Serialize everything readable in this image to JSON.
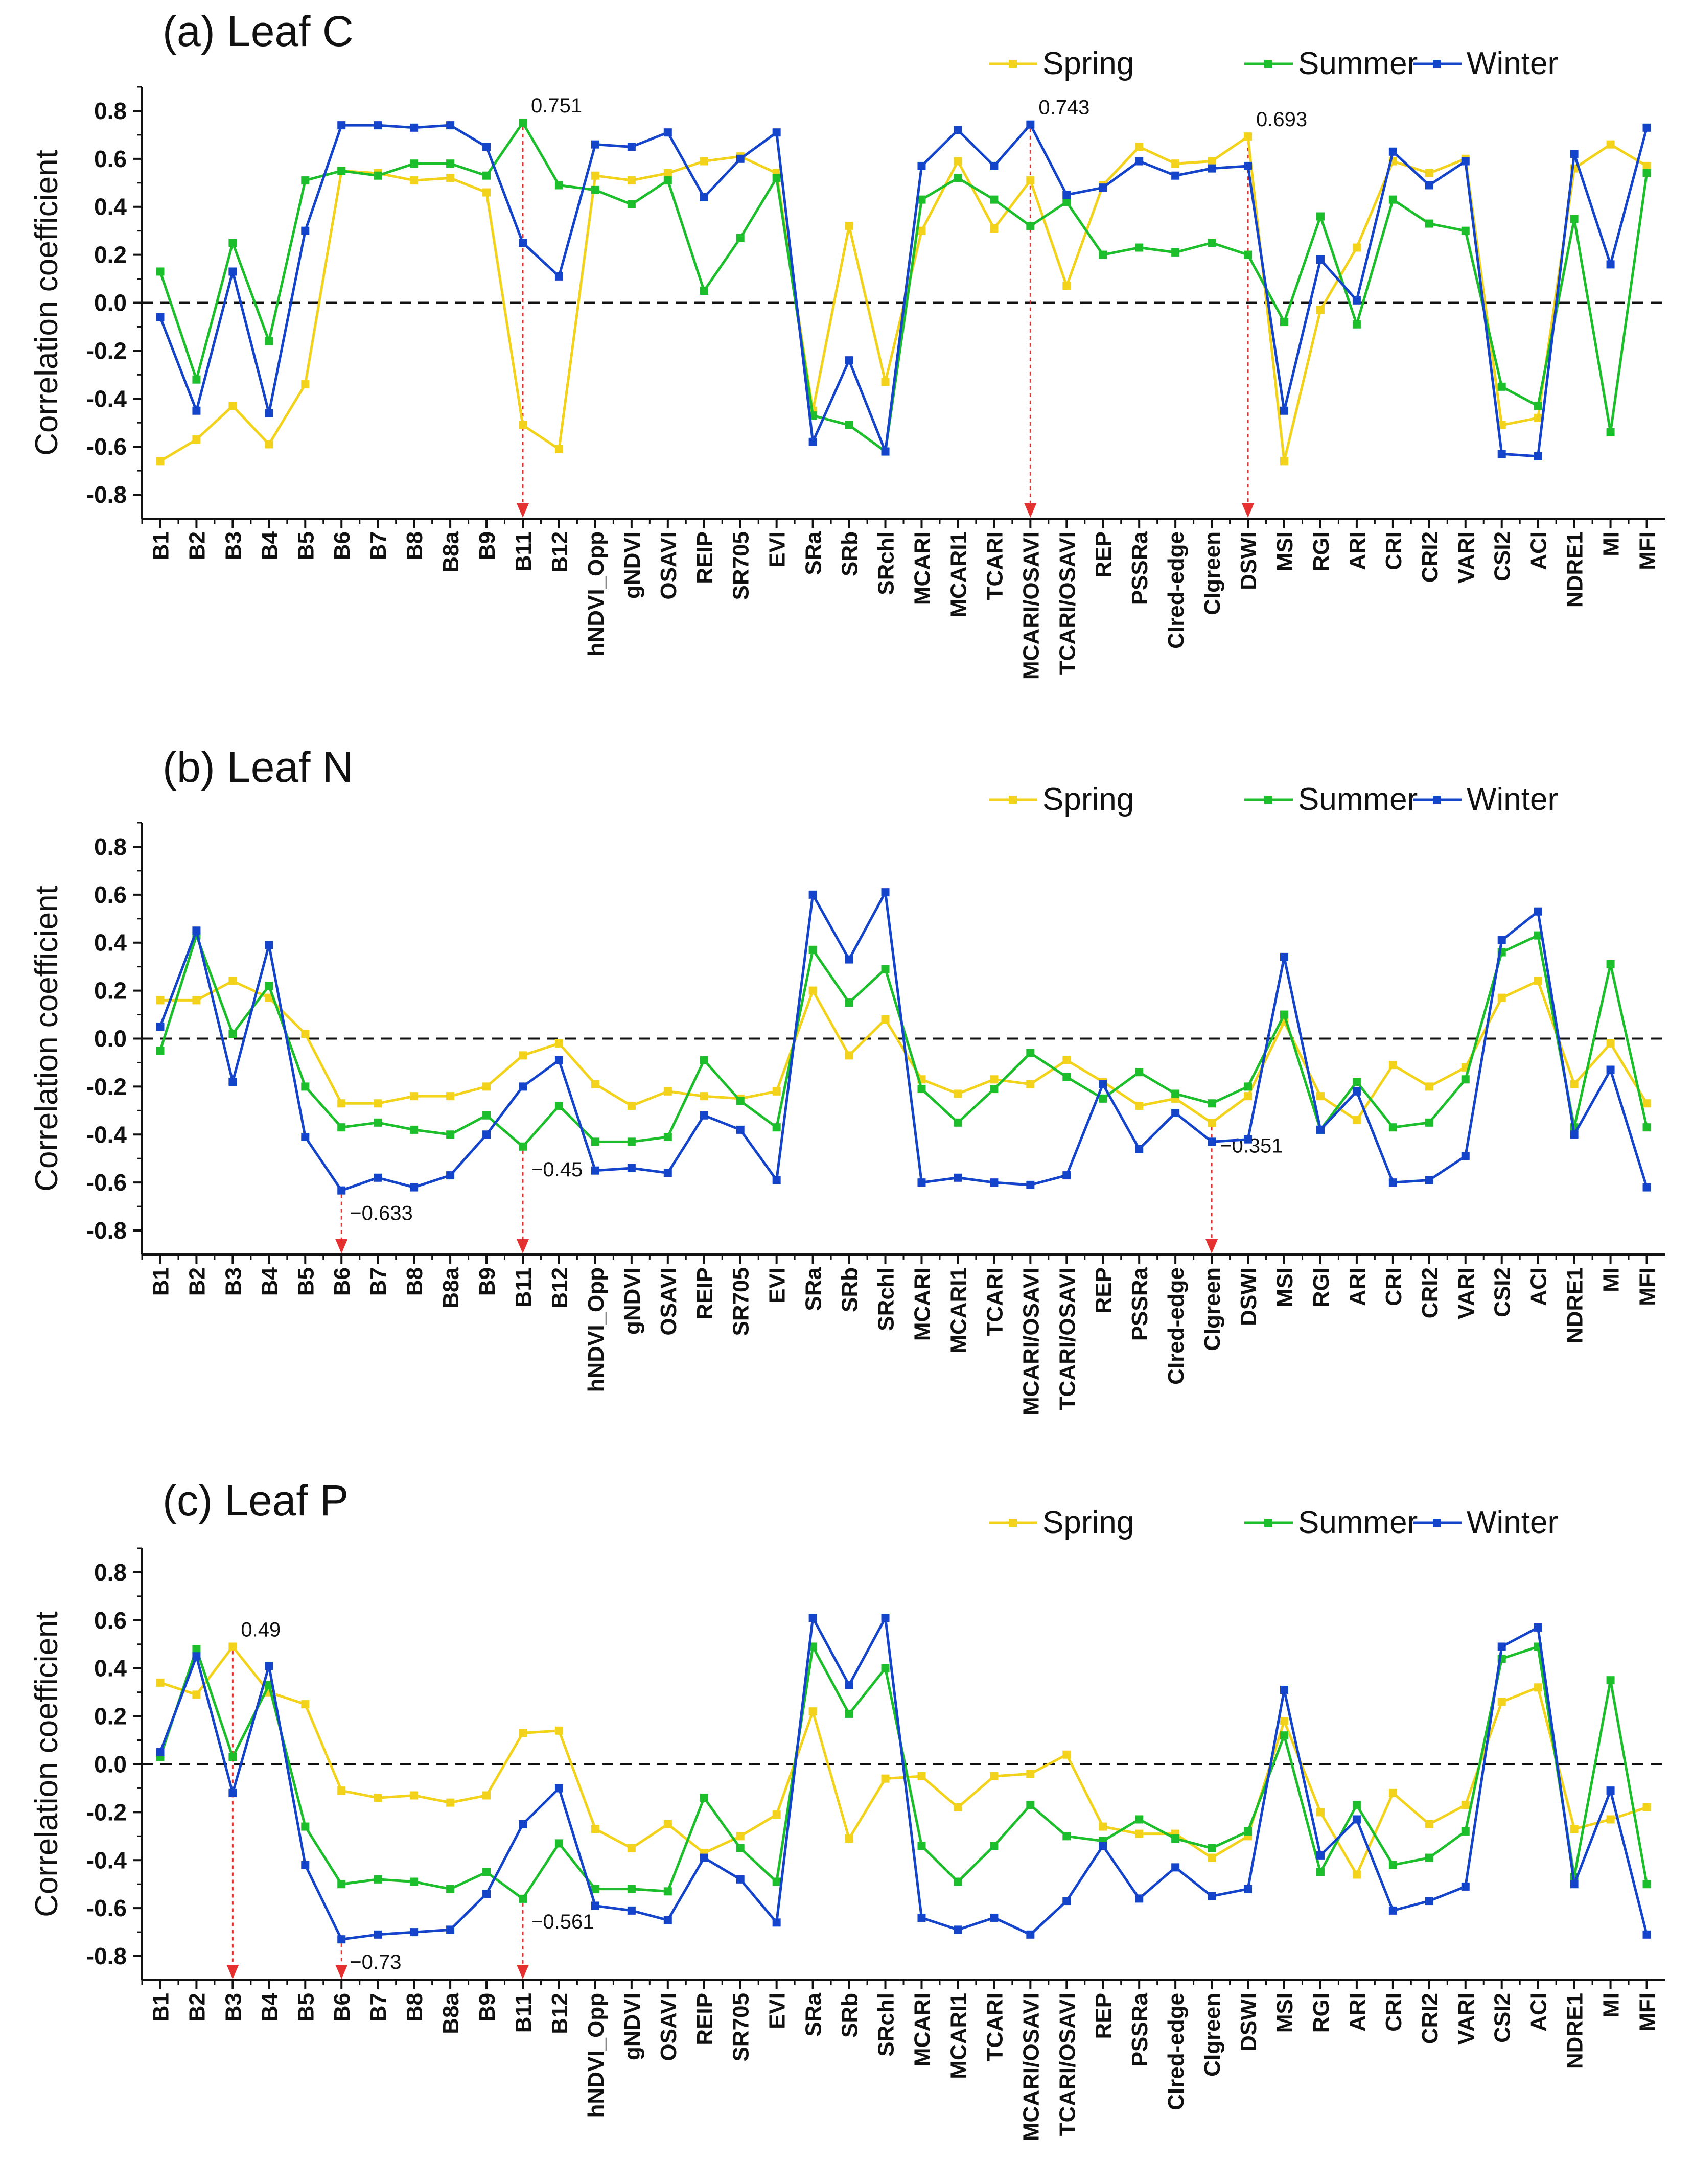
{
  "chart_data": [
    {
      "type": "line",
      "title": "(a) Leaf C",
      "ylabel": "Correlation coefficient",
      "xlabel": "",
      "ylim": [
        -0.9,
        0.9
      ],
      "yticks": [
        "-0.8",
        "-0.6",
        "-0.4",
        "-0.2",
        "0.0",
        "0.2",
        "0.4",
        "0.6",
        "0.8"
      ],
      "reference_line": 0.0,
      "categories": [
        "B1",
        "B2",
        "B3",
        "B4",
        "B5",
        "B6",
        "B7",
        "B8",
        "B8a",
        "B9",
        "B11",
        "B12",
        "hNDVI_Opp",
        "gNDVI",
        "OSAVI",
        "REIP",
        "SR705",
        "EVI",
        "SRa",
        "SRb",
        "SRchl",
        "MCARI",
        "MCARI1",
        "TCARI",
        "MCARI/OSAVI",
        "TCARI/OSAVI",
        "REP",
        "PSSRa",
        "CIred-edge",
        "CIgreen",
        "DSWI",
        "MSI",
        "RGI",
        "ARI",
        "CRI",
        "CRI2",
        "VARI",
        "CSI2",
        "ACI",
        "NDRE1",
        "MI",
        "MFI"
      ],
      "legend_position": "top-right",
      "series": [
        {
          "name": "Spring",
          "color": "#F2D21A",
          "values": [
            -0.66,
            -0.57,
            -0.43,
            -0.59,
            -0.34,
            0.55,
            0.54,
            0.51,
            0.52,
            0.46,
            -0.51,
            -0.61,
            0.53,
            0.51,
            0.54,
            0.59,
            0.61,
            0.54,
            -0.45,
            0.32,
            -0.33,
            0.3,
            0.59,
            0.31,
            0.51,
            0.07,
            0.49,
            0.65,
            0.58,
            0.59,
            0.693,
            -0.66,
            -0.03,
            0.23,
            0.59,
            0.54,
            0.6,
            -0.51,
            -0.48,
            0.56,
            0.66,
            0.57
          ]
        },
        {
          "name": "Summer",
          "color": "#1DBE2B",
          "values": [
            0.13,
            -0.32,
            0.25,
            -0.16,
            0.51,
            0.55,
            0.53,
            0.58,
            0.58,
            0.53,
            0.751,
            0.49,
            0.47,
            0.41,
            0.51,
            0.05,
            0.27,
            0.52,
            -0.47,
            -0.51,
            -0.62,
            0.43,
            0.52,
            0.43,
            0.32,
            0.42,
            0.2,
            0.23,
            0.21,
            0.25,
            0.2,
            -0.08,
            0.36,
            -0.09,
            0.43,
            0.33,
            0.3,
            -0.35,
            -0.43,
            0.35,
            -0.54,
            0.54
          ]
        },
        {
          "name": "Winter",
          "color": "#1444C9",
          "values": [
            -0.06,
            -0.45,
            0.13,
            -0.46,
            0.3,
            0.74,
            0.74,
            0.73,
            0.74,
            0.65,
            0.25,
            0.11,
            0.66,
            0.65,
            0.71,
            0.44,
            0.6,
            0.71,
            -0.58,
            -0.24,
            -0.62,
            0.57,
            0.72,
            0.57,
            0.743,
            0.45,
            0.48,
            0.59,
            0.53,
            0.56,
            0.57,
            -0.45,
            0.18,
            0.01,
            0.63,
            0.49,
            0.59,
            -0.63,
            -0.64,
            0.62,
            0.16,
            0.73
          ]
        }
      ],
      "annotations": [
        {
          "category": "B11",
          "value": 0.751,
          "text": "0.751"
        },
        {
          "category": "MCARI/OSAVI",
          "value": 0.743,
          "text": "0.743"
        },
        {
          "category": "DSWI",
          "value": 0.693,
          "text": "0.693"
        }
      ]
    },
    {
      "type": "line",
      "title": "(b) Leaf N",
      "ylabel": "Correlation coefficient",
      "xlabel": "",
      "ylim": [
        -0.9,
        0.9
      ],
      "yticks": [
        "-0.8",
        "-0.6",
        "-0.4",
        "-0.2",
        "0.0",
        "0.2",
        "0.4",
        "0.6",
        "0.8"
      ],
      "reference_line": 0.0,
      "categories": [
        "B1",
        "B2",
        "B3",
        "B4",
        "B5",
        "B6",
        "B7",
        "B8",
        "B8a",
        "B9",
        "B11",
        "B12",
        "hNDVI_Opp",
        "gNDVI",
        "OSAVI",
        "REIP",
        "SR705",
        "EVI",
        "SRa",
        "SRb",
        "SRchl",
        "MCARI",
        "MCARI1",
        "TCARI",
        "MCARI/OSAVI",
        "TCARI/OSAVI",
        "REP",
        "PSSRa",
        "CIred-edge",
        "CIgreen",
        "DSWI",
        "MSI",
        "RGI",
        "ARI",
        "CRI",
        "CRI2",
        "VARI",
        "CSI2",
        "ACI",
        "NDRE1",
        "MI",
        "MFI"
      ],
      "legend_position": "top-right",
      "series": [
        {
          "name": "Spring",
          "color": "#F2D21A",
          "values": [
            0.16,
            0.16,
            0.24,
            0.17,
            0.02,
            -0.27,
            -0.27,
            -0.24,
            -0.24,
            -0.2,
            -0.07,
            -0.02,
            -0.19,
            -0.28,
            -0.22,
            -0.24,
            -0.25,
            -0.22,
            0.2,
            -0.07,
            0.08,
            -0.17,
            -0.23,
            -0.17,
            -0.19,
            -0.09,
            -0.18,
            -0.28,
            -0.25,
            -0.351,
            -0.24,
            0.07,
            -0.24,
            -0.34,
            -0.11,
            -0.2,
            -0.12,
            0.17,
            0.24,
            -0.19,
            -0.02,
            -0.27
          ]
        },
        {
          "name": "Summer",
          "color": "#1DBE2B",
          "values": [
            -0.05,
            0.43,
            0.02,
            0.22,
            -0.2,
            -0.37,
            -0.35,
            -0.38,
            -0.4,
            -0.32,
            -0.45,
            -0.28,
            -0.43,
            -0.43,
            -0.41,
            -0.09,
            -0.26,
            -0.37,
            0.37,
            0.15,
            0.29,
            -0.21,
            -0.35,
            -0.21,
            -0.06,
            -0.16,
            -0.25,
            -0.14,
            -0.23,
            -0.27,
            -0.2,
            0.1,
            -0.38,
            -0.18,
            -0.37,
            -0.35,
            -0.17,
            0.36,
            0.43,
            -0.37,
            0.31,
            -0.37
          ]
        },
        {
          "name": "Winter",
          "color": "#1444C9",
          "values": [
            0.05,
            0.45,
            -0.18,
            0.39,
            -0.41,
            -0.633,
            -0.58,
            -0.62,
            -0.57,
            -0.4,
            -0.2,
            -0.09,
            -0.55,
            -0.54,
            -0.56,
            -0.32,
            -0.38,
            -0.59,
            0.6,
            0.33,
            0.61,
            -0.6,
            -0.58,
            -0.6,
            -0.61,
            -0.57,
            -0.19,
            -0.46,
            -0.31,
            -0.43,
            -0.42,
            0.34,
            -0.38,
            -0.22,
            -0.6,
            -0.59,
            -0.49,
            0.41,
            0.53,
            -0.4,
            -0.13,
            -0.62
          ]
        }
      ],
      "annotations": [
        {
          "category": "B6",
          "value": -0.633,
          "text": "−0.633"
        },
        {
          "category": "B11",
          "value": -0.45,
          "text": "−0.45"
        },
        {
          "category": "CIgreen",
          "value": -0.351,
          "text": "−0.351"
        }
      ]
    },
    {
      "type": "line",
      "title": "(c) Leaf P",
      "ylabel": "Correlation coefficient",
      "xlabel": "",
      "ylim": [
        -0.9,
        0.9
      ],
      "yticks": [
        "-0.8",
        "-0.6",
        "-0.4",
        "-0.2",
        "0.0",
        "0.2",
        "0.4",
        "0.6",
        "0.8"
      ],
      "reference_line": 0.0,
      "categories": [
        "B1",
        "B2",
        "B3",
        "B4",
        "B5",
        "B6",
        "B7",
        "B8",
        "B8a",
        "B9",
        "B11",
        "B12",
        "hNDVI_Opp",
        "gNDVI",
        "OSAVI",
        "REIP",
        "SR705",
        "EVI",
        "SRa",
        "SRb",
        "SRchl",
        "MCARI",
        "MCARI1",
        "TCARI",
        "MCARI/OSAVI",
        "TCARI/OSAVI",
        "REP",
        "PSSRa",
        "CIred-edge",
        "CIgreen",
        "DSWI",
        "MSI",
        "RGI",
        "ARI",
        "CRI",
        "CRI2",
        "VARI",
        "CSI2",
        "ACI",
        "NDRE1",
        "MI",
        "MFI"
      ],
      "legend_position": "top-right",
      "series": [
        {
          "name": "Spring",
          "color": "#F2D21A",
          "values": [
            0.34,
            0.29,
            0.49,
            0.3,
            0.25,
            -0.11,
            -0.14,
            -0.13,
            -0.16,
            -0.13,
            0.13,
            0.14,
            -0.27,
            -0.35,
            -0.25,
            -0.37,
            -0.3,
            -0.21,
            0.22,
            -0.31,
            -0.06,
            -0.05,
            -0.18,
            -0.05,
            -0.04,
            0.04,
            -0.26,
            -0.29,
            -0.29,
            -0.39,
            -0.3,
            0.18,
            -0.2,
            -0.46,
            -0.12,
            -0.25,
            -0.17,
            0.26,
            0.32,
            -0.27,
            -0.23,
            -0.18
          ]
        },
        {
          "name": "Summer",
          "color": "#1DBE2B",
          "values": [
            0.03,
            0.48,
            0.03,
            0.33,
            -0.26,
            -0.5,
            -0.48,
            -0.49,
            -0.52,
            -0.45,
            -0.561,
            -0.33,
            -0.52,
            -0.52,
            -0.53,
            -0.14,
            -0.35,
            -0.49,
            0.49,
            0.21,
            0.4,
            -0.34,
            -0.49,
            -0.34,
            -0.17,
            -0.3,
            -0.32,
            -0.23,
            -0.31,
            -0.35,
            -0.28,
            0.12,
            -0.45,
            -0.17,
            -0.42,
            -0.39,
            -0.28,
            0.44,
            0.49,
            -0.47,
            0.35,
            -0.5
          ]
        },
        {
          "name": "Winter",
          "color": "#1444C9",
          "values": [
            0.05,
            0.45,
            -0.12,
            0.41,
            -0.42,
            -0.73,
            -0.71,
            -0.7,
            -0.69,
            -0.54,
            -0.25,
            -0.1,
            -0.59,
            -0.61,
            -0.65,
            -0.39,
            -0.48,
            -0.66,
            0.61,
            0.33,
            0.61,
            -0.64,
            -0.69,
            -0.64,
            -0.71,
            -0.57,
            -0.34,
            -0.56,
            -0.43,
            -0.55,
            -0.52,
            0.31,
            -0.38,
            -0.23,
            -0.61,
            -0.57,
            -0.51,
            0.49,
            0.57,
            -0.5,
            -0.11,
            -0.71
          ]
        }
      ],
      "annotations": [
        {
          "category": "B3",
          "value": 0.49,
          "text": "0.49"
        },
        {
          "category": "B6",
          "value": -0.73,
          "text": "−0.73"
        },
        {
          "category": "B11",
          "value": -0.561,
          "text": "−0.561"
        }
      ]
    }
  ]
}
